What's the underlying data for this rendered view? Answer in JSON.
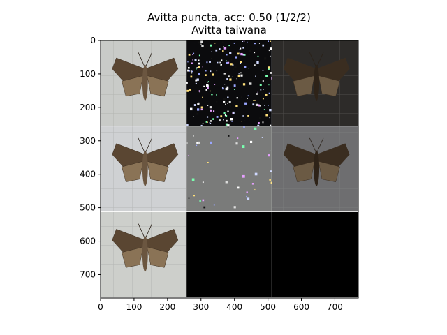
{
  "chart_data": {
    "type": "image-grid",
    "title": "Avitta puncta, acc: 0.50 (1/2/2)",
    "subtitle": "Avitta taiwana",
    "xlabel": "",
    "ylabel": "",
    "xlim": [
      0,
      770
    ],
    "ylim": [
      770,
      0
    ],
    "xticks": [
      0,
      100,
      200,
      300,
      400,
      500,
      600,
      700
    ],
    "yticks": [
      0,
      100,
      200,
      300,
      400,
      500,
      600,
      700
    ],
    "grid": false,
    "tile_size": 256,
    "rows": 3,
    "cols": 3,
    "cells": [
      {
        "row": 0,
        "col": 0,
        "content": "moth-photo",
        "bg": "#c9cbc8"
      },
      {
        "row": 0,
        "col": 1,
        "content": "perturbation-noise-dense",
        "bg": "#0b0b0d"
      },
      {
        "row": 0,
        "col": 2,
        "content": "moth-masked",
        "bg": "#2d2b29"
      },
      {
        "row": 1,
        "col": 0,
        "content": "moth-photo",
        "bg": "#cfd1d3"
      },
      {
        "row": 1,
        "col": 1,
        "content": "perturbation-noise-sparse",
        "bg": "#7a7b7a"
      },
      {
        "row": 1,
        "col": 2,
        "content": "moth-masked",
        "bg": "#6e6e70"
      },
      {
        "row": 2,
        "col": 0,
        "content": "moth-photo",
        "bg": "#cdcfcb"
      },
      {
        "row": 2,
        "col": 1,
        "content": "empty",
        "bg": "#000000"
      },
      {
        "row": 2,
        "col": 2,
        "content": "empty",
        "bg": "#000000"
      }
    ]
  },
  "colors": {
    "moth_body": "#6b5640",
    "moth_wing_dark": "#5a4632",
    "moth_wing_light": "#8a7356",
    "grid_paper_line": "#9a9c9a"
  }
}
